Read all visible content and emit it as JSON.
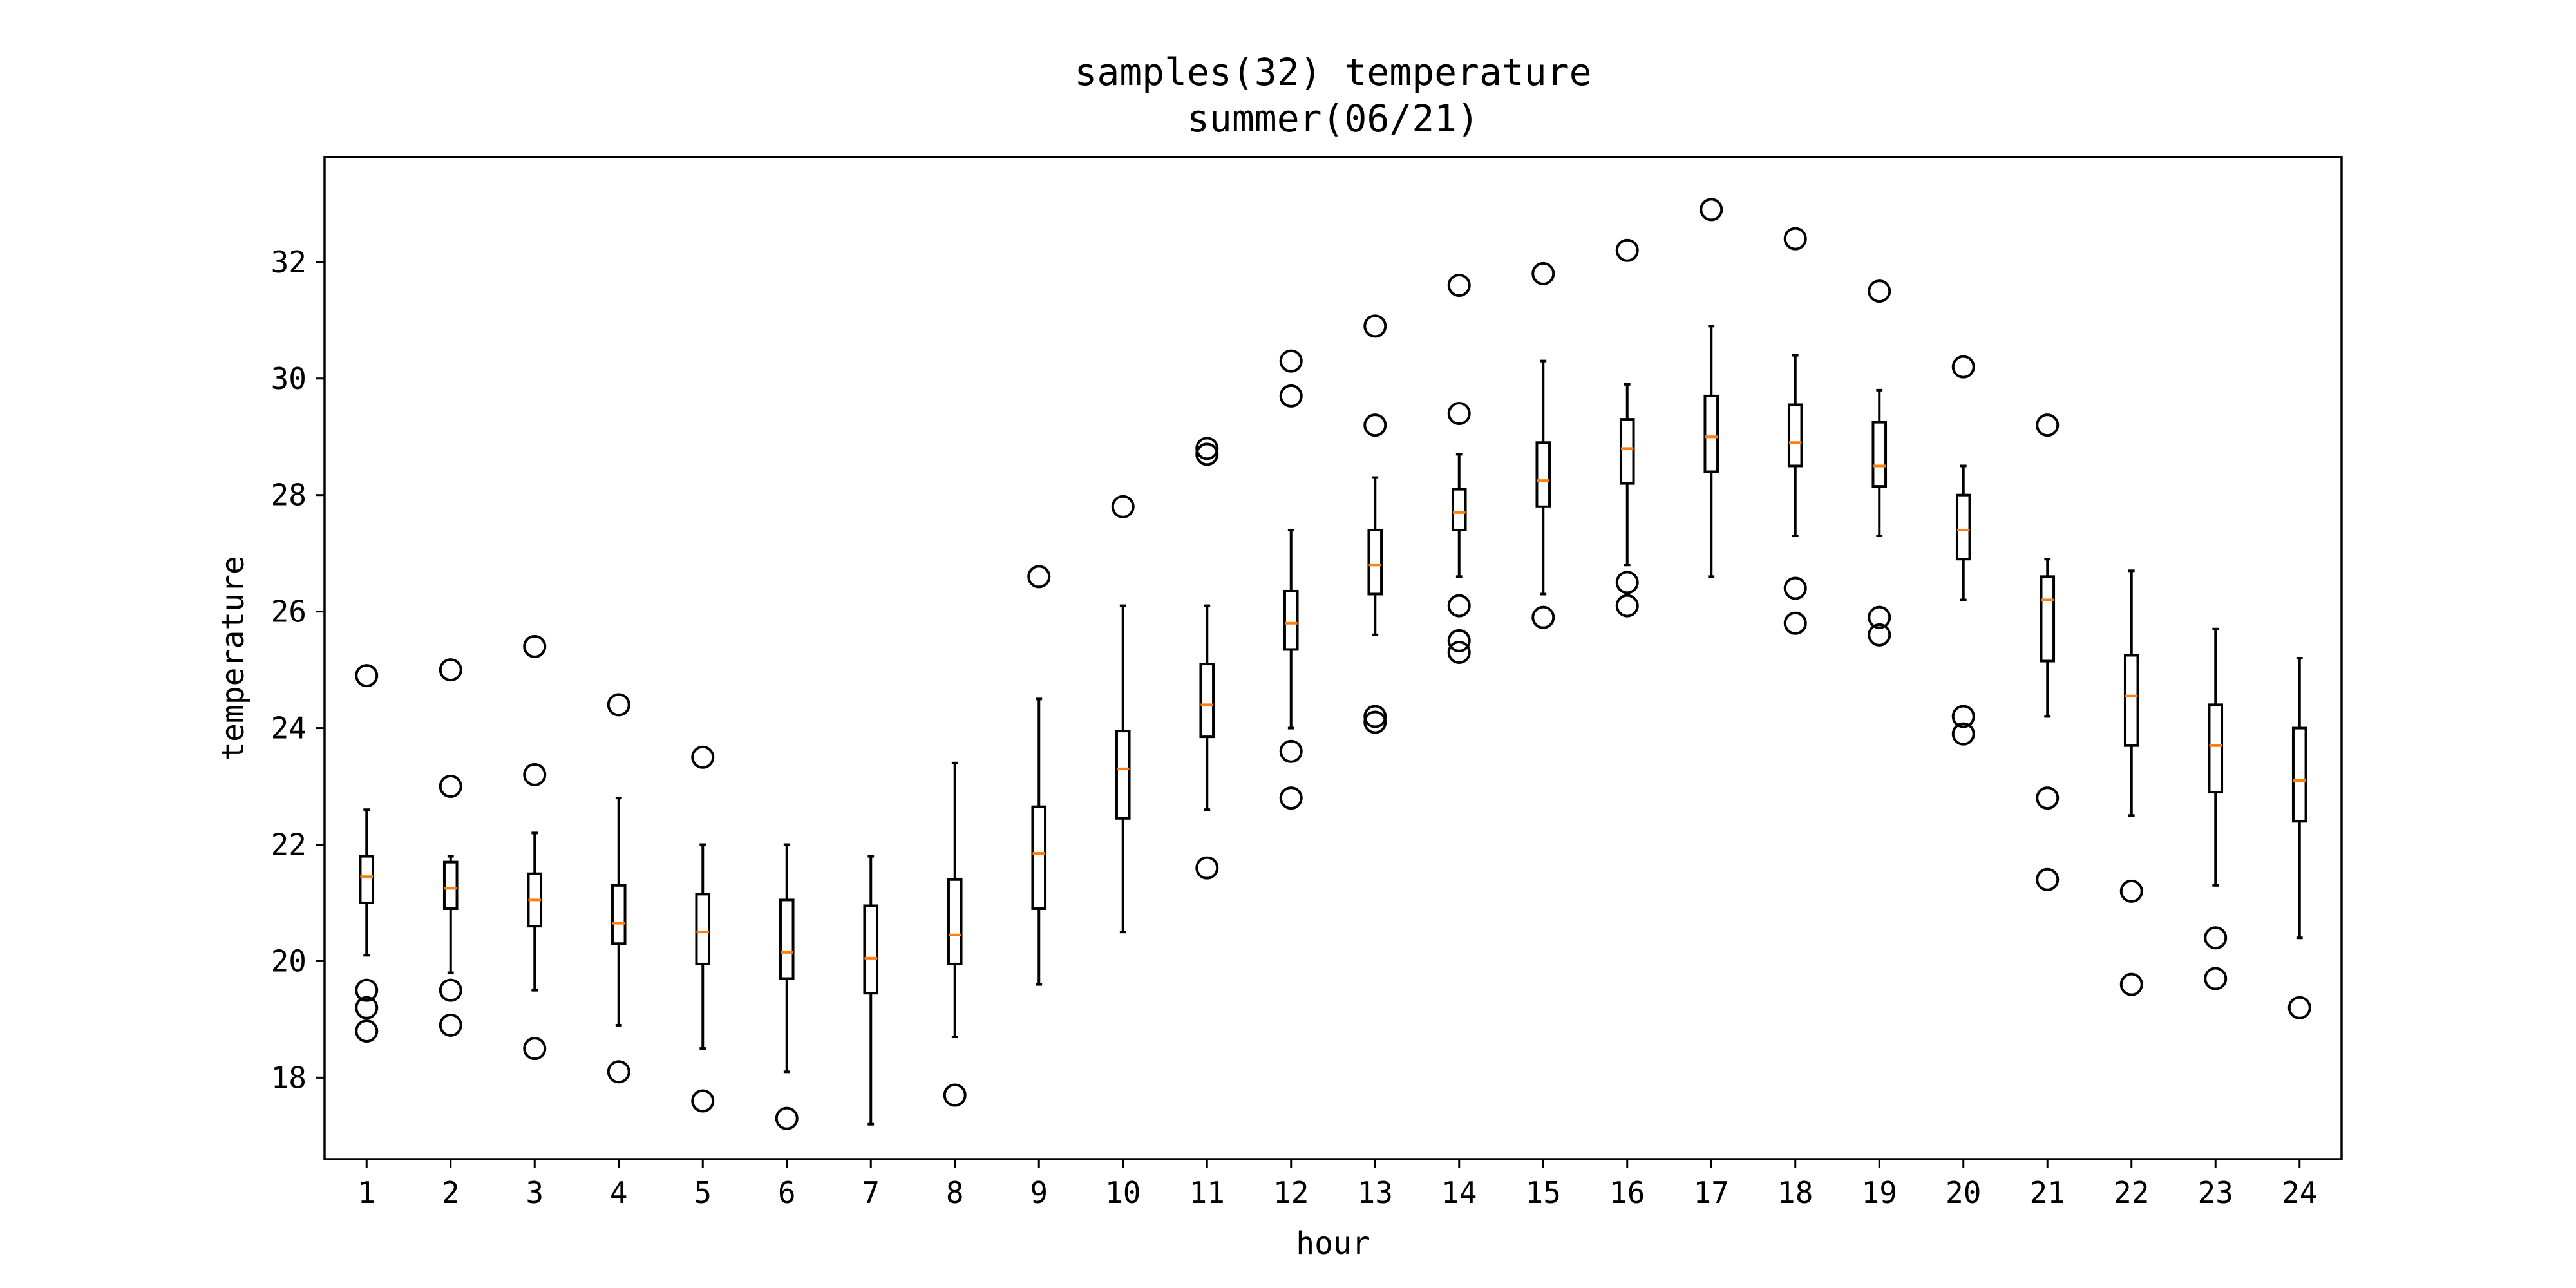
{
  "chart_data": {
    "type": "box",
    "title_line1": "samples(32) temperature",
    "title_line2": "summer(06/21)",
    "xlabel": "hour",
    "ylabel": "temperature",
    "ylim": [
      16.6,
      33.8
    ],
    "yticks": [
      18,
      20,
      22,
      24,
      26,
      28,
      30,
      32
    ],
    "grid": false,
    "colors": {
      "box": "#000000",
      "median": "#ff7f0e",
      "flier": "#000000"
    },
    "boxes": [
      {
        "label": "1",
        "whislo": 20.1,
        "q1": 21.0,
        "med": 21.45,
        "q3": 21.8,
        "whishi": 22.6,
        "fliers": [
          24.9,
          19.5,
          19.2,
          18.8
        ]
      },
      {
        "label": "2",
        "whislo": 19.8,
        "q1": 20.9,
        "med": 21.25,
        "q3": 21.7,
        "whishi": 21.8,
        "fliers": [
          25.0,
          23.0,
          19.5,
          18.9
        ]
      },
      {
        "label": "3",
        "whislo": 19.5,
        "q1": 20.6,
        "med": 21.05,
        "q3": 21.5,
        "whishi": 22.2,
        "fliers": [
          25.4,
          23.2,
          18.5
        ]
      },
      {
        "label": "4",
        "whislo": 18.9,
        "q1": 20.3,
        "med": 20.65,
        "q3": 21.3,
        "whishi": 22.8,
        "fliers": [
          24.4,
          18.1
        ]
      },
      {
        "label": "5",
        "whislo": 18.5,
        "q1": 19.95,
        "med": 20.5,
        "q3": 21.15,
        "whishi": 22.0,
        "fliers": [
          23.5,
          17.6
        ]
      },
      {
        "label": "6",
        "whislo": 18.1,
        "q1": 19.7,
        "med": 20.15,
        "q3": 21.05,
        "whishi": 22.0,
        "fliers": [
          17.3
        ]
      },
      {
        "label": "7",
        "whislo": 17.2,
        "q1": 19.45,
        "med": 20.05,
        "q3": 20.95,
        "whishi": 21.8,
        "fliers": []
      },
      {
        "label": "8",
        "whislo": 18.7,
        "q1": 19.95,
        "med": 20.45,
        "q3": 21.4,
        "whishi": 23.4,
        "fliers": [
          17.7
        ]
      },
      {
        "label": "9",
        "whislo": 19.6,
        "q1": 20.9,
        "med": 21.85,
        "q3": 22.65,
        "whishi": 24.5,
        "fliers": [
          26.6
        ]
      },
      {
        "label": "10",
        "whislo": 20.5,
        "q1": 22.45,
        "med": 23.3,
        "q3": 23.95,
        "whishi": 26.1,
        "fliers": [
          27.8
        ]
      },
      {
        "label": "11",
        "whislo": 22.6,
        "q1": 23.85,
        "med": 24.4,
        "q3": 25.1,
        "whishi": 26.1,
        "fliers": [
          28.8,
          28.7,
          21.6
        ]
      },
      {
        "label": "12",
        "whislo": 24.0,
        "q1": 25.35,
        "med": 25.8,
        "q3": 26.35,
        "whishi": 27.4,
        "fliers": [
          30.3,
          29.7,
          23.6,
          22.8
        ]
      },
      {
        "label": "13",
        "whislo": 25.6,
        "q1": 26.3,
        "med": 26.8,
        "q3": 27.4,
        "whishi": 28.3,
        "fliers": [
          30.9,
          29.2,
          24.2,
          24.1
        ]
      },
      {
        "label": "14",
        "whislo": 26.6,
        "q1": 27.4,
        "med": 27.7,
        "q3": 28.1,
        "whishi": 28.7,
        "fliers": [
          31.6,
          29.4,
          26.1,
          25.5,
          25.3
        ]
      },
      {
        "label": "15",
        "whislo": 26.3,
        "q1": 27.8,
        "med": 28.25,
        "q3": 28.9,
        "whishi": 30.3,
        "fliers": [
          31.8,
          25.9
        ]
      },
      {
        "label": "16",
        "whislo": 26.8,
        "q1": 28.2,
        "med": 28.8,
        "q3": 29.3,
        "whishi": 29.9,
        "fliers": [
          32.2,
          26.5,
          26.1
        ]
      },
      {
        "label": "17",
        "whislo": 26.6,
        "q1": 28.4,
        "med": 29.0,
        "q3": 29.7,
        "whishi": 30.9,
        "fliers": [
          32.9
        ]
      },
      {
        "label": "18",
        "whislo": 27.3,
        "q1": 28.5,
        "med": 28.9,
        "q3": 29.55,
        "whishi": 30.4,
        "fliers": [
          32.4,
          26.4,
          25.8
        ]
      },
      {
        "label": "19",
        "whislo": 27.3,
        "q1": 28.15,
        "med": 28.5,
        "q3": 29.25,
        "whishi": 29.8,
        "fliers": [
          31.5,
          25.9,
          25.6
        ]
      },
      {
        "label": "20",
        "whislo": 26.2,
        "q1": 26.9,
        "med": 27.4,
        "q3": 28.0,
        "whishi": 28.5,
        "fliers": [
          30.2,
          24.2,
          23.9
        ]
      },
      {
        "label": "21",
        "whislo": 24.2,
        "q1": 25.15,
        "med": 26.2,
        "q3": 26.6,
        "whishi": 26.9,
        "fliers": [
          29.2,
          22.8,
          21.4
        ]
      },
      {
        "label": "22",
        "whislo": 22.5,
        "q1": 23.7,
        "med": 24.55,
        "q3": 25.25,
        "whishi": 26.7,
        "fliers": [
          21.2,
          19.6
        ]
      },
      {
        "label": "23",
        "whislo": 21.3,
        "q1": 22.9,
        "med": 23.7,
        "q3": 24.4,
        "whishi": 25.7,
        "fliers": [
          20.4,
          19.7
        ]
      },
      {
        "label": "24",
        "whislo": 20.4,
        "q1": 22.4,
        "med": 23.1,
        "q3": 24.0,
        "whishi": 25.2,
        "fliers": [
          19.2
        ]
      }
    ]
  }
}
